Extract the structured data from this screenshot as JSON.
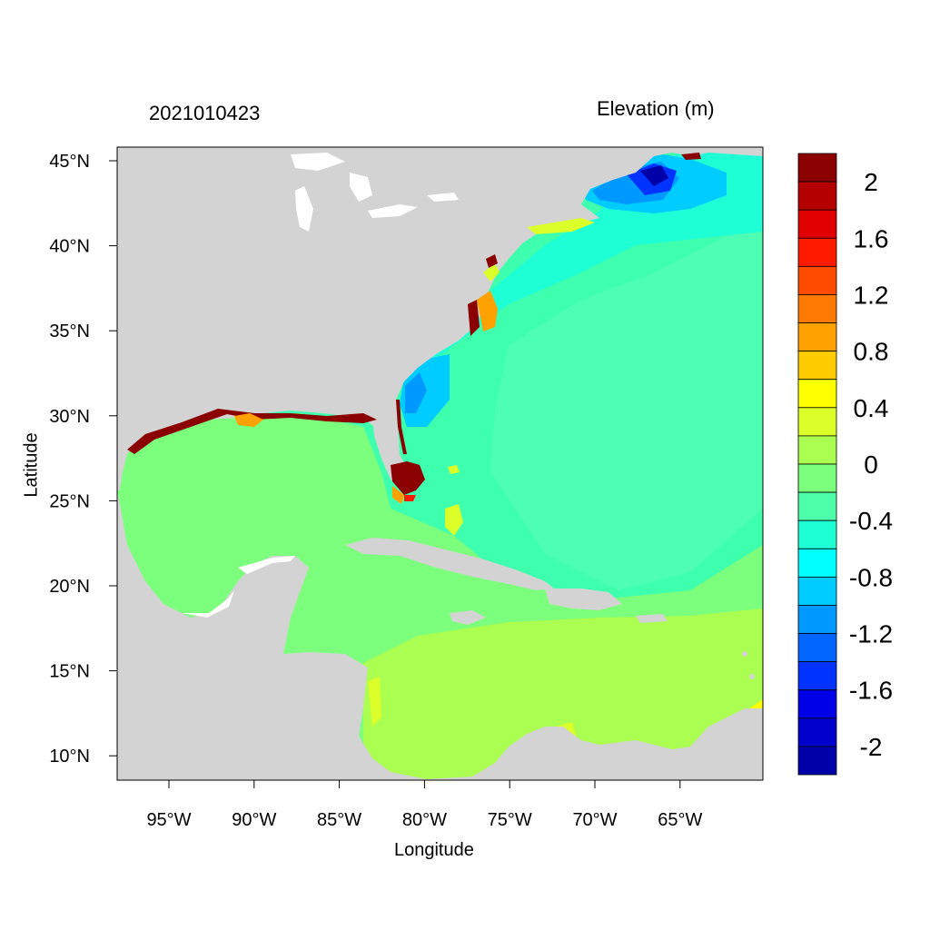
{
  "map": {
    "timestamp": "2021010423",
    "colorbar_title": "Elevation (m)",
    "xlabel": "Longitude",
    "ylabel": "Latitude",
    "lon_ticks": [
      "95°W",
      "90°W",
      "85°W",
      "80°W",
      "75°W",
      "70°W",
      "65°W"
    ],
    "lat_ticks": [
      "45°N",
      "40°N",
      "35°N",
      "30°N",
      "25°N",
      "20°N",
      "15°N",
      "10°N"
    ],
    "land_color": "#d3d3d3",
    "colorbar": {
      "labels": [
        "2",
        "1.6",
        "1.2",
        "0.8",
        "0.4",
        "0",
        "-0.4",
        "-0.8",
        "-1.2",
        "-1.6",
        "-2"
      ],
      "colors": [
        "#8b0000",
        "#b50000",
        "#e00000",
        "#ff1a00",
        "#ff4b00",
        "#ff7a00",
        "#ffa100",
        "#ffcc00",
        "#ffff00",
        "#dcff2a",
        "#aaff50",
        "#7cff7c",
        "#4dffa9",
        "#1effd6",
        "#00ffff",
        "#00ccff",
        "#0099ff",
        "#0066ff",
        "#0033ff",
        "#0000e8",
        "#0000cc",
        "#0000a8"
      ]
    }
  }
}
